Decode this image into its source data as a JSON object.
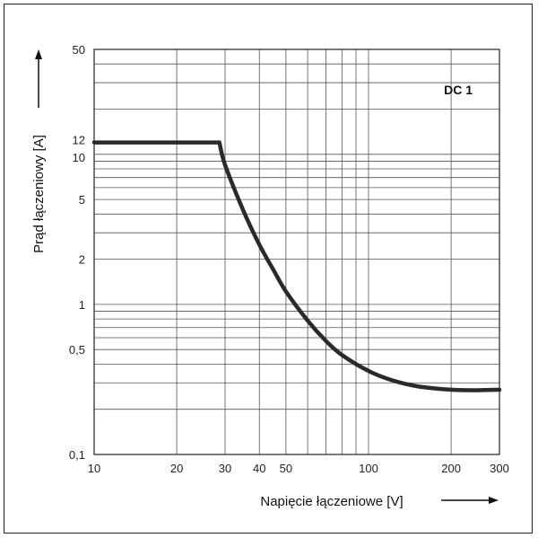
{
  "chart_data": {
    "type": "line",
    "title": "",
    "xlabel": "Napięcie łączeniowe [V]",
    "ylabel": "Prąd łączeniowy [A]",
    "x_scale": "log",
    "y_scale": "log",
    "xlim": [
      10,
      300
    ],
    "ylim": [
      0.1,
      50
    ],
    "grid": true,
    "x_ticks": [
      {
        "value": 10,
        "label": "10"
      },
      {
        "value": 20,
        "label": "20"
      },
      {
        "value": 30,
        "label": "30"
      },
      {
        "value": 40,
        "label": "40"
      },
      {
        "value": 50,
        "label": "50"
      },
      {
        "value": 100,
        "label": "100"
      },
      {
        "value": 200,
        "label": "200"
      },
      {
        "value": 300,
        "label": "300"
      }
    ],
    "y_ticks": [
      {
        "value": 0.1,
        "label": "0,1"
      },
      {
        "value": 0.5,
        "label": "0,5"
      },
      {
        "value": 1,
        "label": "1"
      },
      {
        "value": 2,
        "label": "2"
      },
      {
        "value": 5,
        "label": "5"
      },
      {
        "value": 10,
        "label": "10"
      },
      {
        "value": 12,
        "label": "12"
      },
      {
        "value": 50,
        "label": "50"
      }
    ],
    "annotation": "DC 1",
    "series": [
      {
        "x": [
          10,
          28.6,
          30,
          35,
          40,
          45,
          50,
          60,
          70,
          80,
          100,
          120,
          150,
          200,
          250,
          300
        ],
        "y": [
          12,
          12,
          8.5,
          4.2,
          2.5,
          1.7,
          1.22,
          0.78,
          0.57,
          0.46,
          0.36,
          0.315,
          0.285,
          0.27,
          0.268,
          0.27
        ]
      }
    ],
    "line_color": "#2a2a2a",
    "grid_color": "#555555"
  }
}
